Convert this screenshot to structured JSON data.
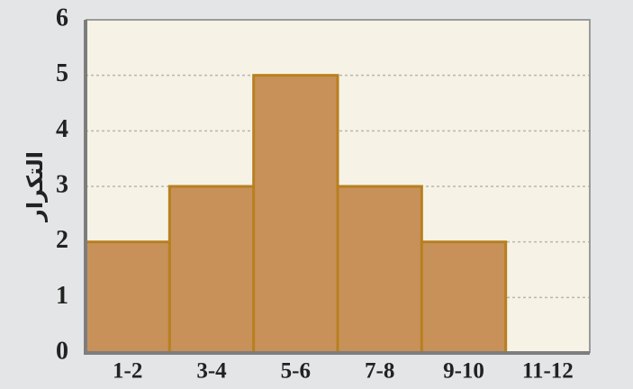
{
  "chart_data": {
    "type": "bar",
    "ylabel": "التكرار",
    "categories": [
      "1-2",
      "3-4",
      "5-6",
      "7-8",
      "9-10",
      "11-12"
    ],
    "values": [
      2,
      3,
      5,
      3,
      2,
      0
    ],
    "color": "#c8915a",
    "edge_color": "#b8801f",
    "ylim": [
      0,
      6
    ],
    "yticks": [
      0,
      1,
      2,
      3,
      4,
      5,
      6
    ],
    "grid": true
  }
}
